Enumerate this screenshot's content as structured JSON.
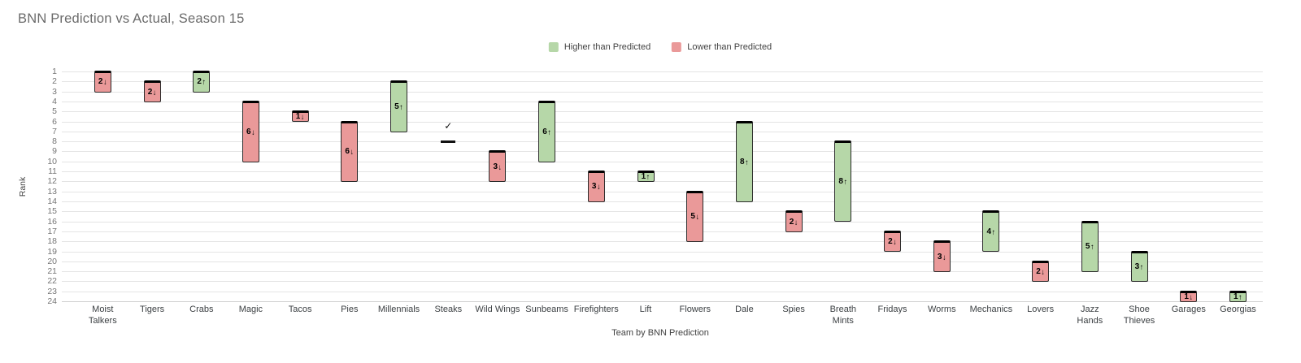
{
  "chart_data": {
    "type": "bar",
    "subtype": "floating-range-bars",
    "title": "BNN Prediction vs Actual, Season 15",
    "xlabel": "Team by BNN Prediction",
    "ylabel": "Rank",
    "ylim": [
      1,
      24
    ],
    "y_axis_inverted": true,
    "grid": true,
    "legend_position": "top-center",
    "y_ticks": [
      1,
      2,
      3,
      4,
      5,
      6,
      7,
      8,
      9,
      10,
      11,
      12,
      13,
      14,
      15,
      16,
      17,
      18,
      19,
      20,
      21,
      22,
      23,
      24
    ],
    "legend": [
      {
        "key": "higher",
        "label": "Higher than Predicted",
        "color": "#b6d7a8"
      },
      {
        "key": "lower",
        "label": "Lower than Predicted",
        "color": "#ea9999"
      }
    ],
    "categories": [
      "Moist Talkers",
      "Tigers",
      "Crabs",
      "Magic",
      "Tacos",
      "Pies",
      "Millennials",
      "Steaks",
      "Wild Wings",
      "Sunbeams",
      "Firefighters",
      "Lift",
      "Flowers",
      "Dale",
      "Spies",
      "Breath Mints",
      "Fridays",
      "Worms",
      "Mechanics",
      "Lovers",
      "Jazz Hands",
      "Shoe Thieves",
      "Garages",
      "Georgias"
    ],
    "teams": [
      {
        "name": "Moist Talkers",
        "axis_label": "Moist\nTalkers",
        "predicted": 1,
        "actual": 3,
        "delta": 2,
        "direction": "down",
        "change_label": "2↓"
      },
      {
        "name": "Tigers",
        "axis_label": "Tigers",
        "predicted": 2,
        "actual": 4,
        "delta": 2,
        "direction": "down",
        "change_label": "2↓"
      },
      {
        "name": "Crabs",
        "axis_label": "Crabs",
        "predicted": 3,
        "actual": 1,
        "delta": 2,
        "direction": "up",
        "change_label": "2↑"
      },
      {
        "name": "Magic",
        "axis_label": "Magic",
        "predicted": 4,
        "actual": 10,
        "delta": 6,
        "direction": "down",
        "change_label": "6↓"
      },
      {
        "name": "Tacos",
        "axis_label": "Tacos",
        "predicted": 5,
        "actual": 6,
        "delta": 1,
        "direction": "down",
        "change_label": "1↓"
      },
      {
        "name": "Pies",
        "axis_label": "Pies",
        "predicted": 6,
        "actual": 12,
        "delta": 6,
        "direction": "down",
        "change_label": "6↓"
      },
      {
        "name": "Millennials",
        "axis_label": "Millennials",
        "predicted": 7,
        "actual": 2,
        "delta": 5,
        "direction": "up",
        "change_label": "5↑"
      },
      {
        "name": "Steaks",
        "axis_label": "Steaks",
        "predicted": 8,
        "actual": 8,
        "delta": 0,
        "direction": "exact",
        "change_label": "✓"
      },
      {
        "name": "Wild Wings",
        "axis_label": "Wild Wings",
        "predicted": 9,
        "actual": 12,
        "delta": 3,
        "direction": "down",
        "change_label": "3↓"
      },
      {
        "name": "Sunbeams",
        "axis_label": "Sunbeams",
        "predicted": 10,
        "actual": 4,
        "delta": 6,
        "direction": "up",
        "change_label": "6↑"
      },
      {
        "name": "Firefighters",
        "axis_label": "Firefighters",
        "predicted": 11,
        "actual": 14,
        "delta": 3,
        "direction": "down",
        "change_label": "3↓"
      },
      {
        "name": "Lift",
        "axis_label": "Lift",
        "predicted": 12,
        "actual": 11,
        "delta": 1,
        "direction": "up",
        "change_label": "1↑"
      },
      {
        "name": "Flowers",
        "axis_label": "Flowers",
        "predicted": 13,
        "actual": 18,
        "delta": 5,
        "direction": "down",
        "change_label": "5↓"
      },
      {
        "name": "Dale",
        "axis_label": "Dale",
        "predicted": 14,
        "actual": 6,
        "delta": 8,
        "direction": "up",
        "change_label": "8↑"
      },
      {
        "name": "Spies",
        "axis_label": "Spies",
        "predicted": 15,
        "actual": 17,
        "delta": 2,
        "direction": "down",
        "change_label": "2↓"
      },
      {
        "name": "Breath Mints",
        "axis_label": "Breath\nMints",
        "predicted": 16,
        "actual": 8,
        "delta": 8,
        "direction": "up",
        "change_label": "8↑"
      },
      {
        "name": "Fridays",
        "axis_label": "Fridays",
        "predicted": 17,
        "actual": 19,
        "delta": 2,
        "direction": "down",
        "change_label": "2↓"
      },
      {
        "name": "Worms",
        "axis_label": "Worms",
        "predicted": 18,
        "actual": 21,
        "delta": 3,
        "direction": "down",
        "change_label": "3↓"
      },
      {
        "name": "Mechanics",
        "axis_label": "Mechanics",
        "predicted": 19,
        "actual": 15,
        "delta": 4,
        "direction": "up",
        "change_label": "4↑"
      },
      {
        "name": "Lovers",
        "axis_label": "Lovers",
        "predicted": 20,
        "actual": 22,
        "delta": 2,
        "direction": "down",
        "change_label": "2↓"
      },
      {
        "name": "Jazz Hands",
        "axis_label": "Jazz\nHands",
        "predicted": 21,
        "actual": 16,
        "delta": 5,
        "direction": "up",
        "change_label": "5↑"
      },
      {
        "name": "Shoe Thieves",
        "axis_label": "Shoe\nThieves",
        "predicted": 22,
        "actual": 19,
        "delta": 3,
        "direction": "up",
        "change_label": "3↑"
      },
      {
        "name": "Garages",
        "axis_label": "Garages",
        "predicted": 23,
        "actual": 24,
        "delta": 1,
        "direction": "down",
        "change_label": "1↓"
      },
      {
        "name": "Georgias",
        "axis_label": "Georgias",
        "predicted": 24,
        "actual": 23,
        "delta": 1,
        "direction": "up",
        "change_label": "1↑"
      }
    ]
  }
}
